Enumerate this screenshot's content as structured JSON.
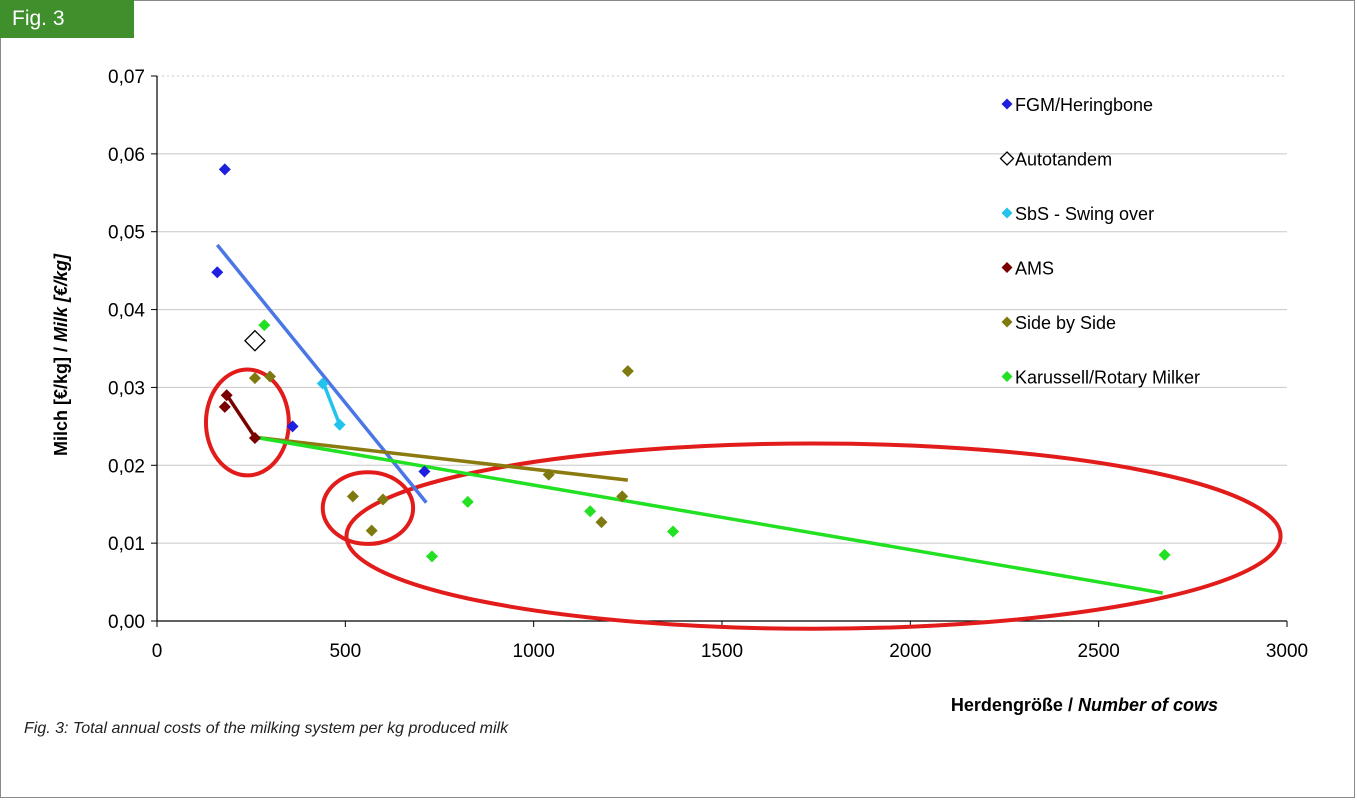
{
  "figure": {
    "tag": "Fig. 3",
    "caption": "Fig. 3: Total annual costs of the milking system per kg produced milk"
  },
  "chart_data": {
    "type": "scatter",
    "title": "",
    "xlabel_main": "Herdengröße /",
    "xlabel_italic": "Number of cows",
    "ylabel_main": "Milch [€/kg] /",
    "ylabel_italic": "Milk [€/kg]",
    "xlim": [
      0,
      3000
    ],
    "ylim": [
      0,
      0.07
    ],
    "x_ticks": [
      {
        "v": 0,
        "label": "0"
      },
      {
        "v": 500,
        "label": "500"
      },
      {
        "v": 1000,
        "label": "1000"
      },
      {
        "v": 1500,
        "label": "1500"
      },
      {
        "v": 2000,
        "label": "2000"
      },
      {
        "v": 2500,
        "label": "2500"
      },
      {
        "v": 3000,
        "label": "3000"
      }
    ],
    "y_ticks": [
      {
        "v": 0,
        "label": "0,00"
      },
      {
        "v": 0.01,
        "label": "0,01"
      },
      {
        "v": 0.02,
        "label": "0,02"
      },
      {
        "v": 0.03,
        "label": "0,03"
      },
      {
        "v": 0.04,
        "label": "0,04"
      },
      {
        "v": 0.05,
        "label": "0,05"
      },
      {
        "v": 0.06,
        "label": "0,06"
      },
      {
        "v": 0.07,
        "label": "0,07"
      }
    ],
    "grid": "horizontal",
    "legend_position": "top-right",
    "series": [
      {
        "name": "FGM/Heringbone",
        "color": "#1f1fe0",
        "marker": "filled",
        "size": 12,
        "points": [
          [
            180,
            0.058
          ],
          [
            160,
            0.0448
          ],
          [
            360,
            0.025
          ],
          [
            710,
            0.0192
          ]
        ]
      },
      {
        "name": "Autotandem",
        "color": "#000000",
        "marker": "hollow",
        "size": 20,
        "points": [
          [
            260,
            0.036
          ]
        ]
      },
      {
        "name": "SbS - Swing over",
        "color": "#22c4ee",
        "marker": "filled",
        "size": 12,
        "points": [
          [
            440,
            0.0305
          ],
          [
            485,
            0.0252
          ]
        ]
      },
      {
        "name": "AMS",
        "color": "#7a0000",
        "marker": "filled",
        "size": 12,
        "points": [
          [
            185,
            0.029
          ],
          [
            180,
            0.0275
          ],
          [
            260,
            0.0235
          ]
        ]
      },
      {
        "name": "Side by Side",
        "color": "#7f7a10",
        "marker": "filled",
        "size": 12,
        "points": [
          [
            260,
            0.0312
          ],
          [
            300,
            0.0314
          ],
          [
            520,
            0.016
          ],
          [
            570,
            0.0116
          ],
          [
            600,
            0.0156
          ],
          [
            1040,
            0.0188
          ],
          [
            1180,
            0.0127
          ],
          [
            1235,
            0.016
          ],
          [
            1250,
            0.0321
          ]
        ]
      },
      {
        "name": "Karussell/Rotary Milker",
        "color": "#22e022",
        "marker": "filled",
        "size": 12,
        "points": [
          [
            285,
            0.038
          ],
          [
            730,
            0.0083
          ],
          [
            825,
            0.0153
          ],
          [
            1150,
            0.0141
          ],
          [
            1370,
            0.0115
          ],
          [
            2675,
            0.0085
          ]
        ]
      }
    ],
    "trendlines": [
      {
        "name": "FGM trend",
        "color": "#4a76e6",
        "from": [
          160,
          0.0483
        ],
        "to": [
          715,
          0.0152
        ]
      },
      {
        "name": "SbS swing trend",
        "color": "#22c4ee",
        "from": [
          440,
          0.0308
        ],
        "to": [
          485,
          0.0252
        ]
      },
      {
        "name": "AMS trend",
        "color": "#7a0000",
        "from": [
          183,
          0.0292
        ],
        "to": [
          260,
          0.0236
        ]
      },
      {
        "name": "Side by Side trend",
        "color": "#8b7a10",
        "from": [
          260,
          0.0236
        ],
        "to": [
          1250,
          0.0181
        ]
      },
      {
        "name": "Rotary trend",
        "color": "#22e022",
        "from": [
          260,
          0.0236
        ],
        "to": [
          2670,
          0.0036
        ]
      }
    ],
    "annotations": [
      {
        "name": "ams-cluster-ellipse",
        "color": "#e21b1b",
        "center": [
          240,
          0.0255
        ],
        "rx": 110,
        "ry": 0.0068
      },
      {
        "name": "sbs-small-cluster-ellipse",
        "color": "#e21b1b",
        "center": [
          560,
          0.0145
        ],
        "rx": 120,
        "ry": 0.0046
      },
      {
        "name": "large-herd-ellipse",
        "color": "#e21b1b",
        "center": [
          1743,
          0.0109
        ],
        "rx": 1240,
        "ry": 0.0119
      }
    ]
  }
}
